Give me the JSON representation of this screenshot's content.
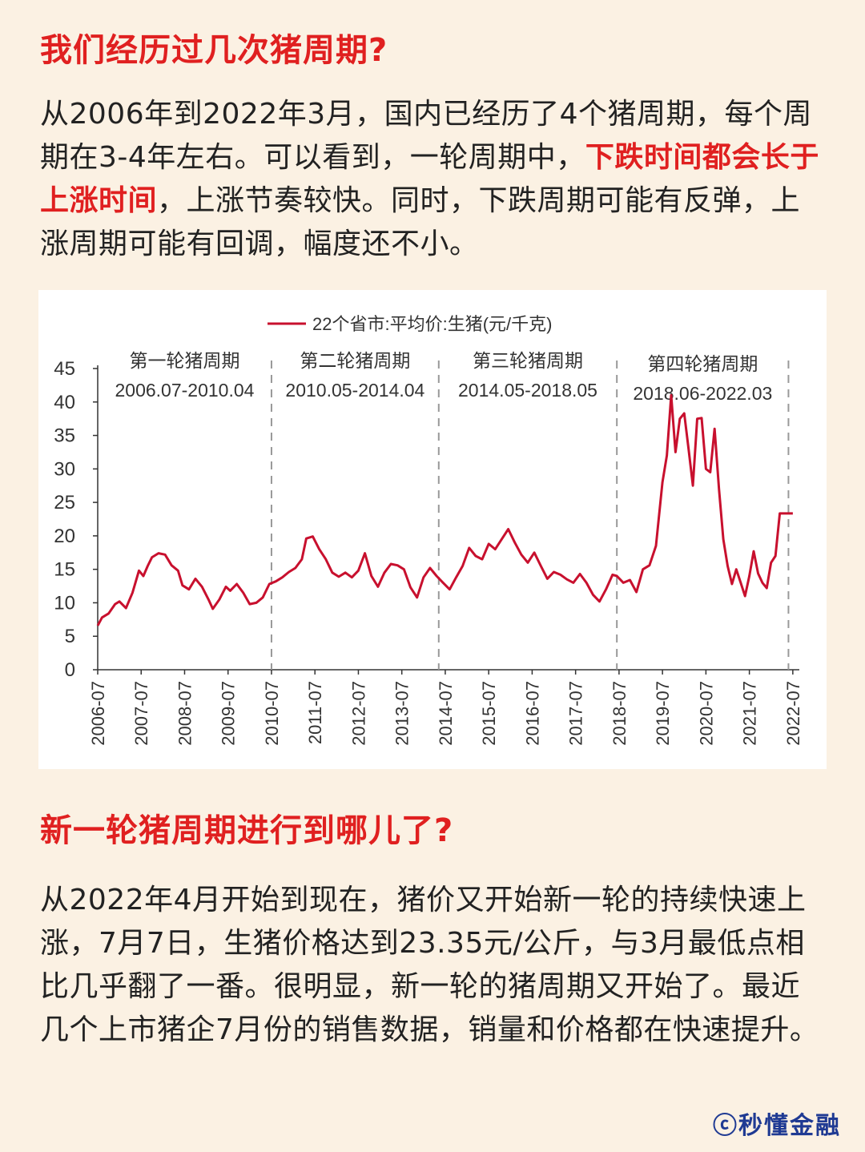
{
  "section1": {
    "heading": "我们经历过几次猪周期?",
    "para_before": "从2006年到2022年3月，国内已经历了4个猪周期，每个周期在3-4年左右。可以看到，一轮周期中，",
    "para_highlight": "下跌时间都会长于上涨时间",
    "para_after": "，上涨节奏较快。同时，下跌周期可能有反弹，上涨周期可能有回调，幅度还不小。"
  },
  "section2": {
    "heading": "新一轮猪周期进行到哪儿了?",
    "para": "从2022年4月开始到现在，猪价又开始新一轮的持续快速上涨，7月7日，生猪价格达到23.35元/公斤，与3月最低点相比几乎翻了一番。很明显，新一轮的猪周期又开始了。最近几个上市猪企7月份的销售数据，销量和价格都在快速提升。"
  },
  "watermark": "ⓒ秒懂金融",
  "chart_data": {
    "type": "line",
    "legend": "22个省市:平均价:生猪(元/千克)",
    "series_color": "#c8102e",
    "ylim": [
      0,
      45
    ],
    "y_ticks": [
      "0",
      "5",
      "10",
      "15",
      "20",
      "25",
      "30",
      "35",
      "40",
      "45"
    ],
    "x_range": [
      2006.5,
      2022.65
    ],
    "x_tick_labels": [
      "2006-07",
      "2007-07",
      "2008-07",
      "2009-07",
      "2010-07",
      "2011-07",
      "2012-07",
      "2013-07",
      "2014-07",
      "2015-07",
      "2016-07",
      "2017-07",
      "2018-07",
      "2019-07",
      "2020-07",
      "2021-07",
      "2022-07"
    ],
    "x_tick_values": [
      2006.5,
      2007.5,
      2008.5,
      2009.5,
      2010.5,
      2011.5,
      2012.5,
      2013.5,
      2014.5,
      2015.5,
      2016.5,
      2017.5,
      2018.5,
      2019.5,
      2020.5,
      2021.5,
      2022.5
    ],
    "cycle_dividers": [
      2010.5,
      2014.35,
      2018.45,
      2022.4
    ],
    "cycles": [
      {
        "name": "第一轮猪周期",
        "range": "2006.07-2010.04",
        "x_start": 2006.5,
        "x_end": 2010.5
      },
      {
        "name": "第二轮猪周期",
        "range": "2010.05-2014.04",
        "x_start": 2010.5,
        "x_end": 2014.35
      },
      {
        "name": "第三轮猪周期",
        "range": "2014.05-2018.05",
        "x_start": 2014.35,
        "x_end": 2018.45
      },
      {
        "name": "第四轮猪周期",
        "range": "2018.06-2022.03",
        "x_start": 2018.45,
        "x_end": 2022.4
      }
    ],
    "x": [
      2006.5,
      2006.6,
      2006.75,
      2006.9,
      2007.0,
      2007.15,
      2007.3,
      2007.45,
      2007.55,
      2007.65,
      2007.75,
      2007.9,
      2008.05,
      2008.2,
      2008.35,
      2008.45,
      2008.6,
      2008.75,
      2008.9,
      2009.05,
      2009.15,
      2009.3,
      2009.45,
      2009.55,
      2009.7,
      2009.85,
      2010.0,
      2010.15,
      2010.3,
      2010.45,
      2010.6,
      2010.75,
      2010.9,
      2011.05,
      2011.2,
      2011.3,
      2011.45,
      2011.6,
      2011.75,
      2011.9,
      2012.05,
      2012.2,
      2012.35,
      2012.5,
      2012.65,
      2012.8,
      2012.95,
      2013.1,
      2013.25,
      2013.4,
      2013.55,
      2013.7,
      2013.85,
      2014.0,
      2014.15,
      2014.3,
      2014.45,
      2014.6,
      2014.75,
      2014.9,
      2015.05,
      2015.2,
      2015.35,
      2015.5,
      2015.65,
      2015.8,
      2015.95,
      2016.1,
      2016.25,
      2016.4,
      2016.55,
      2016.7,
      2016.85,
      2017.0,
      2017.15,
      2017.3,
      2017.45,
      2017.6,
      2017.75,
      2017.9,
      2018.05,
      2018.2,
      2018.35,
      2018.45,
      2018.6,
      2018.75,
      2018.9,
      2019.05,
      2019.2,
      2019.35,
      2019.5,
      2019.6,
      2019.7,
      2019.8,
      2019.9,
      2020.0,
      2020.1,
      2020.2,
      2020.3,
      2020.4,
      2020.5,
      2020.6,
      2020.7,
      2020.8,
      2020.9,
      2021.0,
      2021.1,
      2021.2,
      2021.3,
      2021.4,
      2021.5,
      2021.6,
      2021.7,
      2021.8,
      2021.9,
      2022.0,
      2022.1,
      2022.2,
      2022.3,
      2022.4,
      2022.5,
      2022.55
    ],
    "values": [
      6.6,
      7.8,
      8.4,
      9.8,
      10.2,
      9.2,
      11.5,
      14.8,
      14.0,
      15.5,
      16.8,
      17.4,
      17.2,
      15.6,
      14.8,
      12.6,
      12.0,
      13.6,
      12.4,
      10.5,
      9.1,
      10.5,
      12.4,
      11.8,
      12.8,
      11.5,
      9.8,
      10.0,
      10.8,
      12.8,
      13.2,
      13.8,
      14.6,
      15.2,
      16.5,
      19.6,
      19.9,
      18.0,
      16.5,
      14.5,
      13.9,
      14.5,
      13.8,
      14.8,
      17.4,
      14.0,
      12.4,
      14.5,
      15.8,
      15.6,
      15.0,
      12.3,
      10.8,
      13.8,
      15.2,
      14.0,
      13.0,
      12.0,
      13.8,
      15.5,
      18.2,
      17.0,
      16.5,
      18.8,
      18.0,
      19.5,
      21.0,
      19.0,
      17.2,
      16.0,
      17.5,
      15.5,
      13.6,
      14.6,
      14.2,
      13.5,
      13.0,
      14.3,
      13.0,
      11.2,
      10.2,
      12.0,
      14.2,
      14.0,
      13.0,
      13.4,
      11.6,
      15.0,
      15.6,
      18.5,
      28.0,
      32.0,
      41.0,
      32.5,
      37.5,
      38.3,
      33.0,
      27.5,
      37.5,
      37.6,
      30.0,
      29.5,
      36.0,
      27.0,
      19.5,
      15.5,
      12.8,
      15.0,
      13.0,
      11.0,
      14.0,
      17.7,
      14.4,
      13.0,
      12.2,
      16.0,
      17.0,
      23.35,
      23.35,
      23.35,
      23.35,
      23.35
    ]
  }
}
